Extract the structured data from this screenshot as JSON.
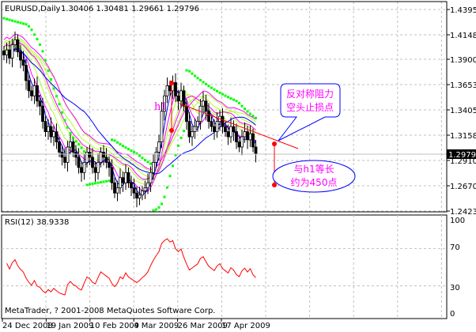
{
  "header": {
    "symbol_label": "EURUSD,Daily",
    "ohlc_label": "1.30406 1.30481 1.29661 1.29796"
  },
  "rsi_panel": {
    "label": "RSI(12) 38.9338",
    "levels": [
      "100",
      "70",
      "30",
      "0"
    ]
  },
  "copyright": "MetaTrader, ? 2001-2008 MetaQuotes Software Corp.",
  "annotations": {
    "h1_label": "h1",
    "callout_line1": "反对称阻力",
    "callout_line2": "空头止损点",
    "ellipse_line1": "与h1等长",
    "ellipse_line2": "约为450点"
  },
  "colors": {
    "candle": "#000000",
    "sma_blue": "#0000ff",
    "sma_magenta": "#ff00ff",
    "sma_green": "#adff2f",
    "sar": "#00ff00",
    "annotation": "#ff0000",
    "rsi": "#ff0000"
  },
  "chart_data": {
    "type": "candlestick",
    "x_tick_labels": [
      "24 Dec 2008",
      "19 Jan 2009",
      "10 Feb 2009",
      "4 Mar 2009",
      "26 Mar 2009",
      "17 Apr 2009"
    ],
    "y_tick_labels": [
      "1.43955",
      "1.41480",
      "1.39005",
      "1.36530",
      "1.34055",
      "1.31580",
      "1.29105",
      "1.26705",
      "1.24230"
    ],
    "ylim": [
      1.2423,
      1.43955
    ],
    "current_price": "1.29796",
    "closes": [
      1.395,
      1.4,
      1.392,
      1.405,
      1.41,
      1.398,
      1.39,
      1.385,
      1.37,
      1.36,
      1.355,
      1.365,
      1.35,
      1.345,
      1.33,
      1.32,
      1.325,
      1.315,
      1.32,
      1.31,
      1.3,
      1.295,
      1.29,
      1.305,
      1.31,
      1.3,
      1.295,
      1.285,
      1.28,
      1.29,
      1.3,
      1.295,
      1.285,
      1.28,
      1.29,
      1.3,
      1.295,
      1.29,
      1.285,
      1.27,
      1.26,
      1.265,
      1.275,
      1.27,
      1.28,
      1.27,
      1.265,
      1.26,
      1.255,
      1.258,
      1.262,
      1.265,
      1.27,
      1.28,
      1.29,
      1.3,
      1.31,
      1.34,
      1.355,
      1.365,
      1.36,
      1.368,
      1.355,
      1.35,
      1.36,
      1.345,
      1.33,
      1.315,
      1.32,
      1.325,
      1.33,
      1.345,
      1.35,
      1.34,
      1.33,
      1.325,
      1.32,
      1.33,
      1.335,
      1.325,
      1.32,
      1.315,
      1.325,
      1.32,
      1.31,
      1.305,
      1.315,
      1.32,
      1.312,
      1.318,
      1.305,
      1.29796
    ],
    "rsi": {
      "period": 12,
      "last": 38.9338,
      "ylim": [
        0,
        100
      ],
      "levels": [
        70,
        30
      ]
    }
  }
}
